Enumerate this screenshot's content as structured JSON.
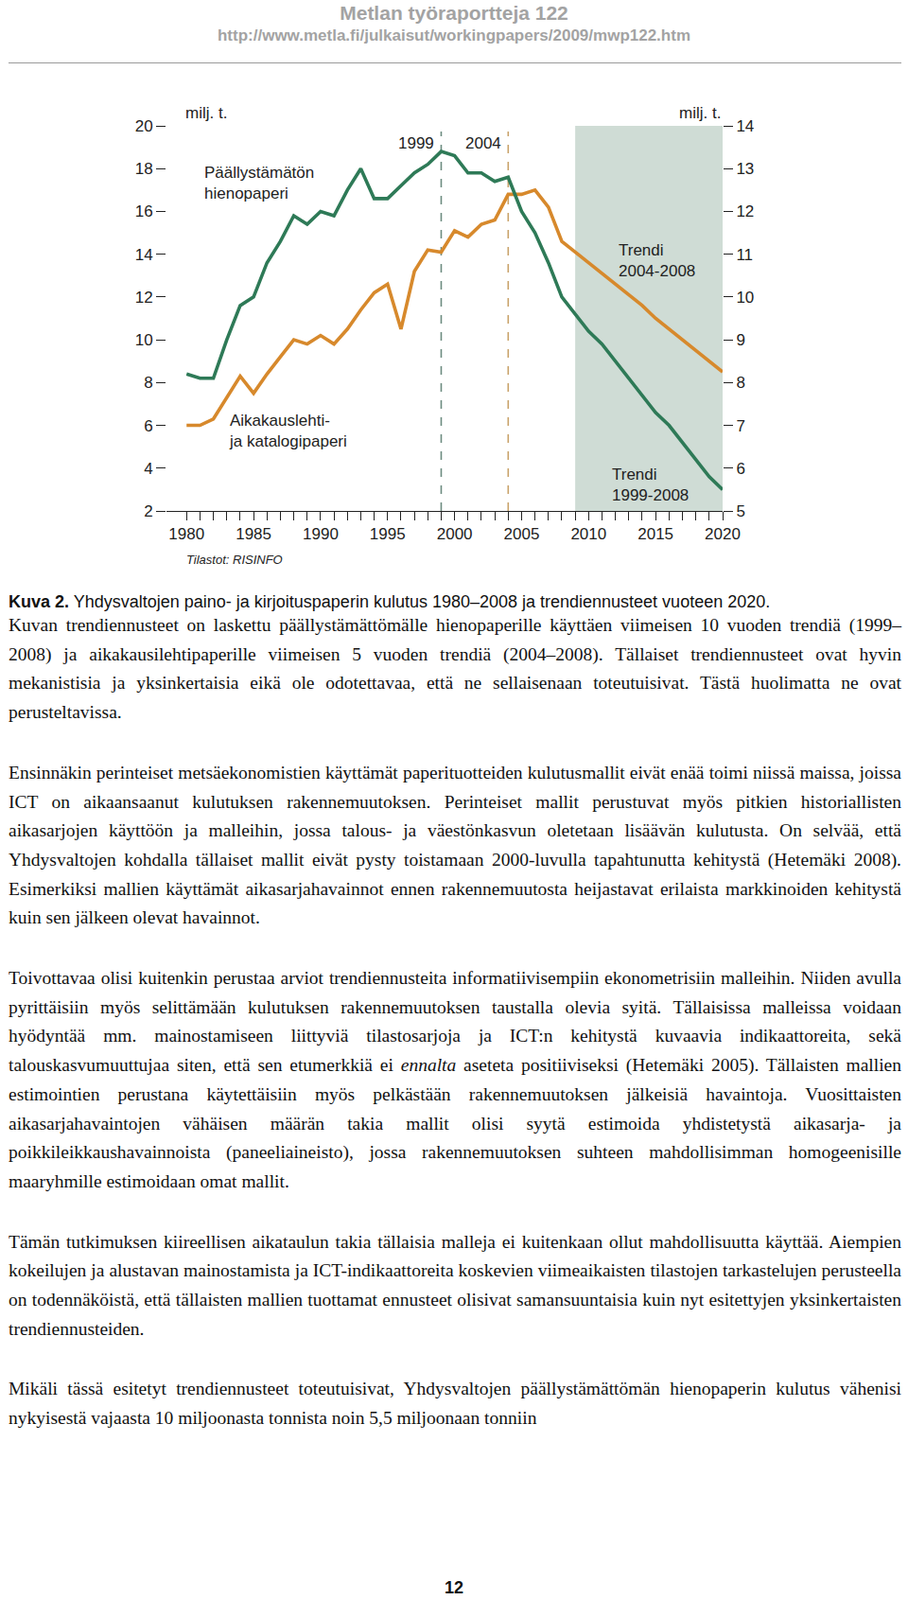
{
  "header": {
    "title": "Metlan työraportteja 122",
    "url": "http://www.metla.fi/julkaisut/workingpapers/2009/mwp122.htm"
  },
  "chart_data": {
    "type": "line",
    "ylabel": "milj. t.",
    "y2label": "milj. t.",
    "x": [
      1980,
      1981,
      1982,
      1983,
      1984,
      1985,
      1986,
      1987,
      1988,
      1989,
      1990,
      1991,
      1992,
      1993,
      1994,
      1995,
      1996,
      1997,
      1998,
      1999,
      2000,
      2001,
      2002,
      2003,
      2004,
      2005,
      2006,
      2007,
      2008,
      2009,
      2010,
      2011,
      2012,
      2013,
      2014,
      2015,
      2016,
      2017,
      2018,
      2019,
      2020
    ],
    "xlim": [
      1978.5,
      2020
    ],
    "xticks": [
      1980,
      1985,
      1990,
      1995,
      2000,
      2005,
      2010,
      2015,
      2020
    ],
    "ylim": [
      2,
      20
    ],
    "yticks": [
      2,
      4,
      6,
      8,
      10,
      12,
      14,
      16,
      18,
      20
    ],
    "y2lim": [
      5,
      14
    ],
    "y2ticks": [
      5,
      6,
      7,
      8,
      9,
      10,
      11,
      12,
      13,
      14
    ],
    "grid": false,
    "series": [
      {
        "name": "Päällystämätön\nhienopaperi",
        "trend_label": "Trendi\n1999-2008",
        "color": "#2e7a57",
        "axis": "y2",
        "values": [
          8.2,
          8.1,
          8.1,
          9.0,
          9.8,
          10.0,
          10.8,
          11.3,
          11.9,
          11.7,
          12.0,
          11.9,
          12.5,
          13.0,
          12.3,
          12.3,
          12.6,
          12.9,
          13.1,
          13.4,
          13.3,
          12.9,
          12.9,
          12.7,
          12.8,
          12.0,
          11.5,
          10.8,
          10.0,
          9.6,
          9.2,
          8.9,
          8.5,
          8.1,
          7.7,
          7.3,
          7.0,
          6.6,
          6.2,
          5.8,
          5.5
        ]
      },
      {
        "name": "Aikakauslehti-\nja katalogipaperi",
        "trend_label": "Trendi\n2004-2008",
        "color": "#d7892c",
        "values": [
          6.0,
          6.0,
          6.3,
          7.3,
          8.3,
          7.5,
          8.4,
          9.2,
          10.0,
          9.8,
          10.2,
          9.8,
          10.5,
          11.4,
          12.2,
          12.6,
          10.5,
          13.2,
          14.2,
          14.1,
          15.1,
          14.8,
          15.4,
          15.6,
          16.8,
          16.8,
          17.0,
          16.2,
          14.6,
          14.1,
          13.6,
          13.1,
          12.6,
          12.1,
          11.6,
          11.0,
          10.5,
          10.0,
          9.5,
          9.0,
          8.5
        ]
      }
    ],
    "vlines": [
      {
        "x": 1999,
        "label": "1999",
        "color": "#6d8c81",
        "line_style": "dashed"
      },
      {
        "x": 2004,
        "label": "2004",
        "color": "#c9a36b",
        "line_style": "dashed"
      }
    ],
    "shaded": {
      "x0": 2009,
      "x1": 2020,
      "color": "#cfdcd5"
    },
    "source": "Tilastot: RISINFO"
  },
  "caption": {
    "label": "Kuva 2.",
    "text": "Yhdysvaltojen paino- ja kirjoituspaperin kulutus 1980–2008 ja trendiennusteet vuoteen 2020."
  },
  "paragraphs": [
    [
      "Kuvan trendiennusteet on laskettu päällystämättömälle hienopaperille käyttäen viimeisen 10 vuoden trendiä (1999–2008) ja aikakausilehtipaperille viimeisen 5 vuoden trendiä (2004–2008). Tällaiset trendiennusteet ovat hyvin mekanistisia ja yksinkertaisia eikä ole odotettavaa, että ne sellaisenaan toteutuisivat. Tästä huolimatta ne ovat perusteltavissa."
    ],
    [
      "Ensinnäkin perinteiset metsäekonomistien käyttämät paperituotteiden kulutusmallit eivät enää toimi niissä maissa, joissa ICT on aikaansaanut kulutuksen rakennemuutoksen. Perinteiset mallit perustuvat myös pitkien historiallisten aikasarjojen käyttöön ja malleihin, jossa talous- ja väestönkasvun oletetaan lisäävän kulutusta. On selvää, että Yhdysvaltojen kohdalla tällaiset mallit eivät pysty toistamaan 2000-luvulla tapahtunutta kehitystä (Hetemäki 2008). Esimerkiksi mallien käyttämät aikasarjahavainnot ennen rakennemuutosta heijastavat erilaista markkinoiden kehitystä kuin sen jälkeen olevat havainnot."
    ],
    [
      "Toivottavaa olisi kuitenkin perustaa arviot trendiennusteita informatiivisempiin ekonometrisiin malleihin. Niiden avulla pyrittäisiin myös selittämään kulutuksen rakennemuutoksen taustalla olevia syitä. Tällaisissa malleissa voidaan hyödyntää mm. mainostamiseen liittyviä tilastosarjoja ja ICT:n kehitystä kuvaavia indikaattoreita, sekä talouskasvumuuttujaa siten, että sen etumerkkiä ei ",
      {
        "italic": "ennalta"
      },
      " aseteta positiiviseksi (Hetemäki 2005). Tällaisten mallien estimointien perustana käytettäisiin myös pelkästään rakennemuutoksen jälkeisiä havaintoja. Vuosittaisten aikasarjahavaintojen vähäisen määrän takia mallit olisi syytä estimoida yhdistetystä aikasarja- ja poikkileikkaushavainnoista (paneeliaineisto), jossa rakennemuutoksen suhteen mahdollisimman homogeenisille maaryhmille estimoidaan omat mallit."
    ],
    [
      "Tämän tutkimuksen kiireellisen aikataulun takia tällaisia malleja ei kuitenkaan ollut mahdollisuutta käyttää. Aiempien kokeilujen ja alustavan mainostamista ja ICT-indikaattoreita koskevien viimeaikaisten tilastojen tarkastelujen perusteella on todennäköistä, että tällaisten mallien tuottamat ennusteet olisivat samansuuntaisia kuin nyt esitettyjen yksinkertaisten trendiennusteiden."
    ],
    [
      "Mikäli tässä esitetyt trendiennusteet toteutuisivat, Yhdysvaltojen päällystämättömän hienopaperin kulutus vähenisi nykyisestä vajaasta 10 miljoonasta tonnista noin 5,5 miljoonaan tonniin"
    ]
  ],
  "page_number": "12"
}
